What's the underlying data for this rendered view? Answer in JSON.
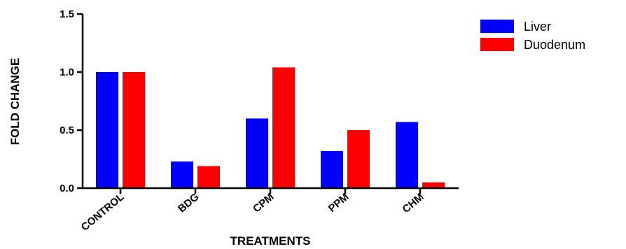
{
  "chart_data": {
    "type": "bar",
    "xlabel": "TREATMENTS",
    "ylabel": "FOLD CHANGE",
    "categories": [
      "CONTROL",
      "BDG",
      "CPM",
      "PPM",
      "CHM"
    ],
    "series": [
      {
        "name": "Liver",
        "color": "#0000ff",
        "values": [
          1.0,
          0.23,
          0.6,
          0.32,
          0.57
        ]
      },
      {
        "name": "Duodenum",
        "color": "#ff0000",
        "values": [
          1.0,
          0.19,
          1.04,
          0.5,
          0.05
        ]
      }
    ],
    "ylim": [
      0,
      1.5
    ],
    "yticks": [
      "0.0",
      "0.5",
      "1.0",
      "1.5"
    ],
    "grid": false,
    "legend_position": "top-right"
  }
}
